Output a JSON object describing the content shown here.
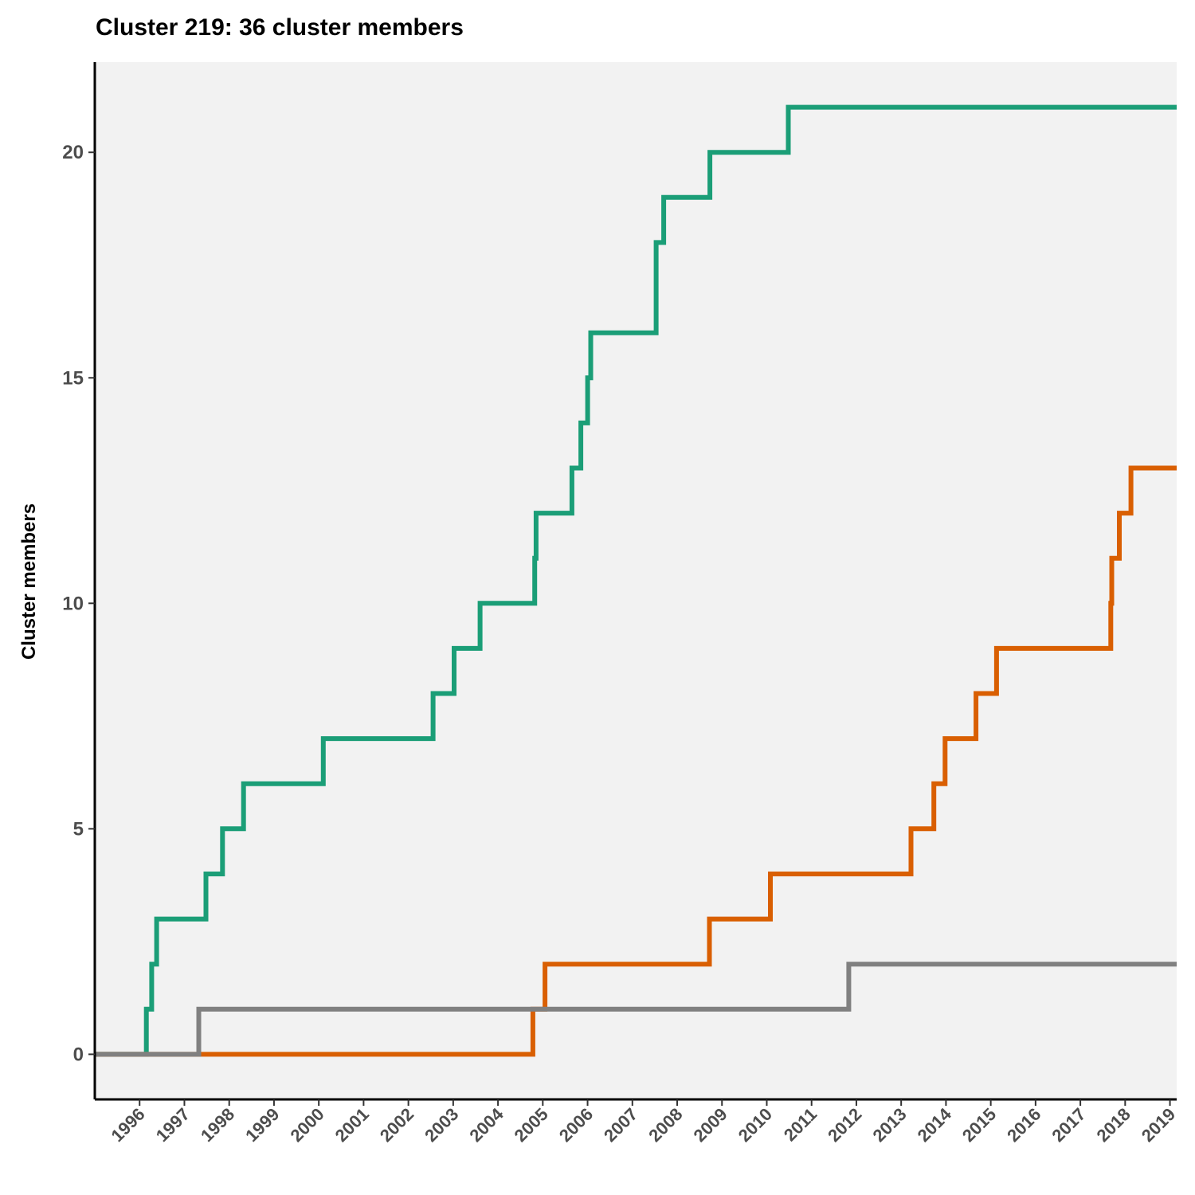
{
  "chart_data": {
    "type": "line",
    "step": true,
    "title": "Cluster 219: 36 cluster members",
    "xlabel": "",
    "ylabel": "Cluster members",
    "xlim": [
      1995.0,
      2019.15
    ],
    "ylim": [
      -1,
      22
    ],
    "x_ticks": [
      1996,
      1997,
      1998,
      1999,
      2000,
      2001,
      2002,
      2003,
      2004,
      2005,
      2006,
      2007,
      2008,
      2009,
      2010,
      2011,
      2012,
      2013,
      2014,
      2015,
      2016,
      2017,
      2018,
      2019
    ],
    "y_ticks": [
      0,
      5,
      10,
      15,
      20
    ],
    "grid": false,
    "background": "#f2f2f2",
    "series": [
      {
        "color": "#1b9e77",
        "points": [
          [
            1995.0,
            0
          ],
          [
            1996.15,
            0
          ],
          [
            1996.15,
            1
          ],
          [
            1996.27,
            1
          ],
          [
            1996.27,
            2
          ],
          [
            1996.38,
            2
          ],
          [
            1996.38,
            3
          ],
          [
            1997.48,
            3
          ],
          [
            1997.48,
            4
          ],
          [
            1997.85,
            4
          ],
          [
            1997.85,
            5
          ],
          [
            1998.32,
            5
          ],
          [
            1998.32,
            6
          ],
          [
            2000.1,
            6
          ],
          [
            2000.1,
            7
          ],
          [
            2002.55,
            7
          ],
          [
            2002.55,
            8
          ],
          [
            2003.02,
            8
          ],
          [
            2003.02,
            9
          ],
          [
            2003.6,
            9
          ],
          [
            2003.6,
            10
          ],
          [
            2004.82,
            10
          ],
          [
            2004.82,
            11
          ],
          [
            2004.85,
            11
          ],
          [
            2004.85,
            12
          ],
          [
            2005.65,
            12
          ],
          [
            2005.65,
            13
          ],
          [
            2005.85,
            13
          ],
          [
            2005.85,
            14
          ],
          [
            2006.0,
            14
          ],
          [
            2006.0,
            15
          ],
          [
            2006.07,
            15
          ],
          [
            2006.07,
            16
          ],
          [
            2007.53,
            16
          ],
          [
            2007.53,
            18
          ],
          [
            2007.7,
            18
          ],
          [
            2007.7,
            19
          ],
          [
            2008.73,
            19
          ],
          [
            2008.73,
            20
          ],
          [
            2010.48,
            20
          ],
          [
            2010.48,
            21
          ],
          [
            2019.15,
            21
          ]
        ]
      },
      {
        "color": "#d95f02",
        "points": [
          [
            1995.0,
            0
          ],
          [
            2004.78,
            0
          ],
          [
            2004.78,
            1
          ],
          [
            2005.05,
            1
          ],
          [
            2005.05,
            2
          ],
          [
            2008.72,
            2
          ],
          [
            2008.72,
            3
          ],
          [
            2010.08,
            3
          ],
          [
            2010.08,
            4
          ],
          [
            2013.22,
            4
          ],
          [
            2013.22,
            5
          ],
          [
            2013.73,
            5
          ],
          [
            2013.73,
            6
          ],
          [
            2013.98,
            6
          ],
          [
            2013.98,
            7
          ],
          [
            2014.67,
            7
          ],
          [
            2014.67,
            8
          ],
          [
            2015.13,
            8
          ],
          [
            2015.13,
            9
          ],
          [
            2017.68,
            9
          ],
          [
            2017.68,
            10
          ],
          [
            2017.7,
            10
          ],
          [
            2017.7,
            11
          ],
          [
            2017.87,
            11
          ],
          [
            2017.87,
            12
          ],
          [
            2018.13,
            12
          ],
          [
            2018.13,
            13
          ],
          [
            2019.15,
            13
          ]
        ]
      },
      {
        "color": "#808080",
        "points": [
          [
            1995.0,
            0
          ],
          [
            1997.32,
            0
          ],
          [
            1997.32,
            1
          ],
          [
            2011.83,
            1
          ],
          [
            2011.83,
            2
          ],
          [
            2019.15,
            2
          ]
        ]
      }
    ]
  }
}
